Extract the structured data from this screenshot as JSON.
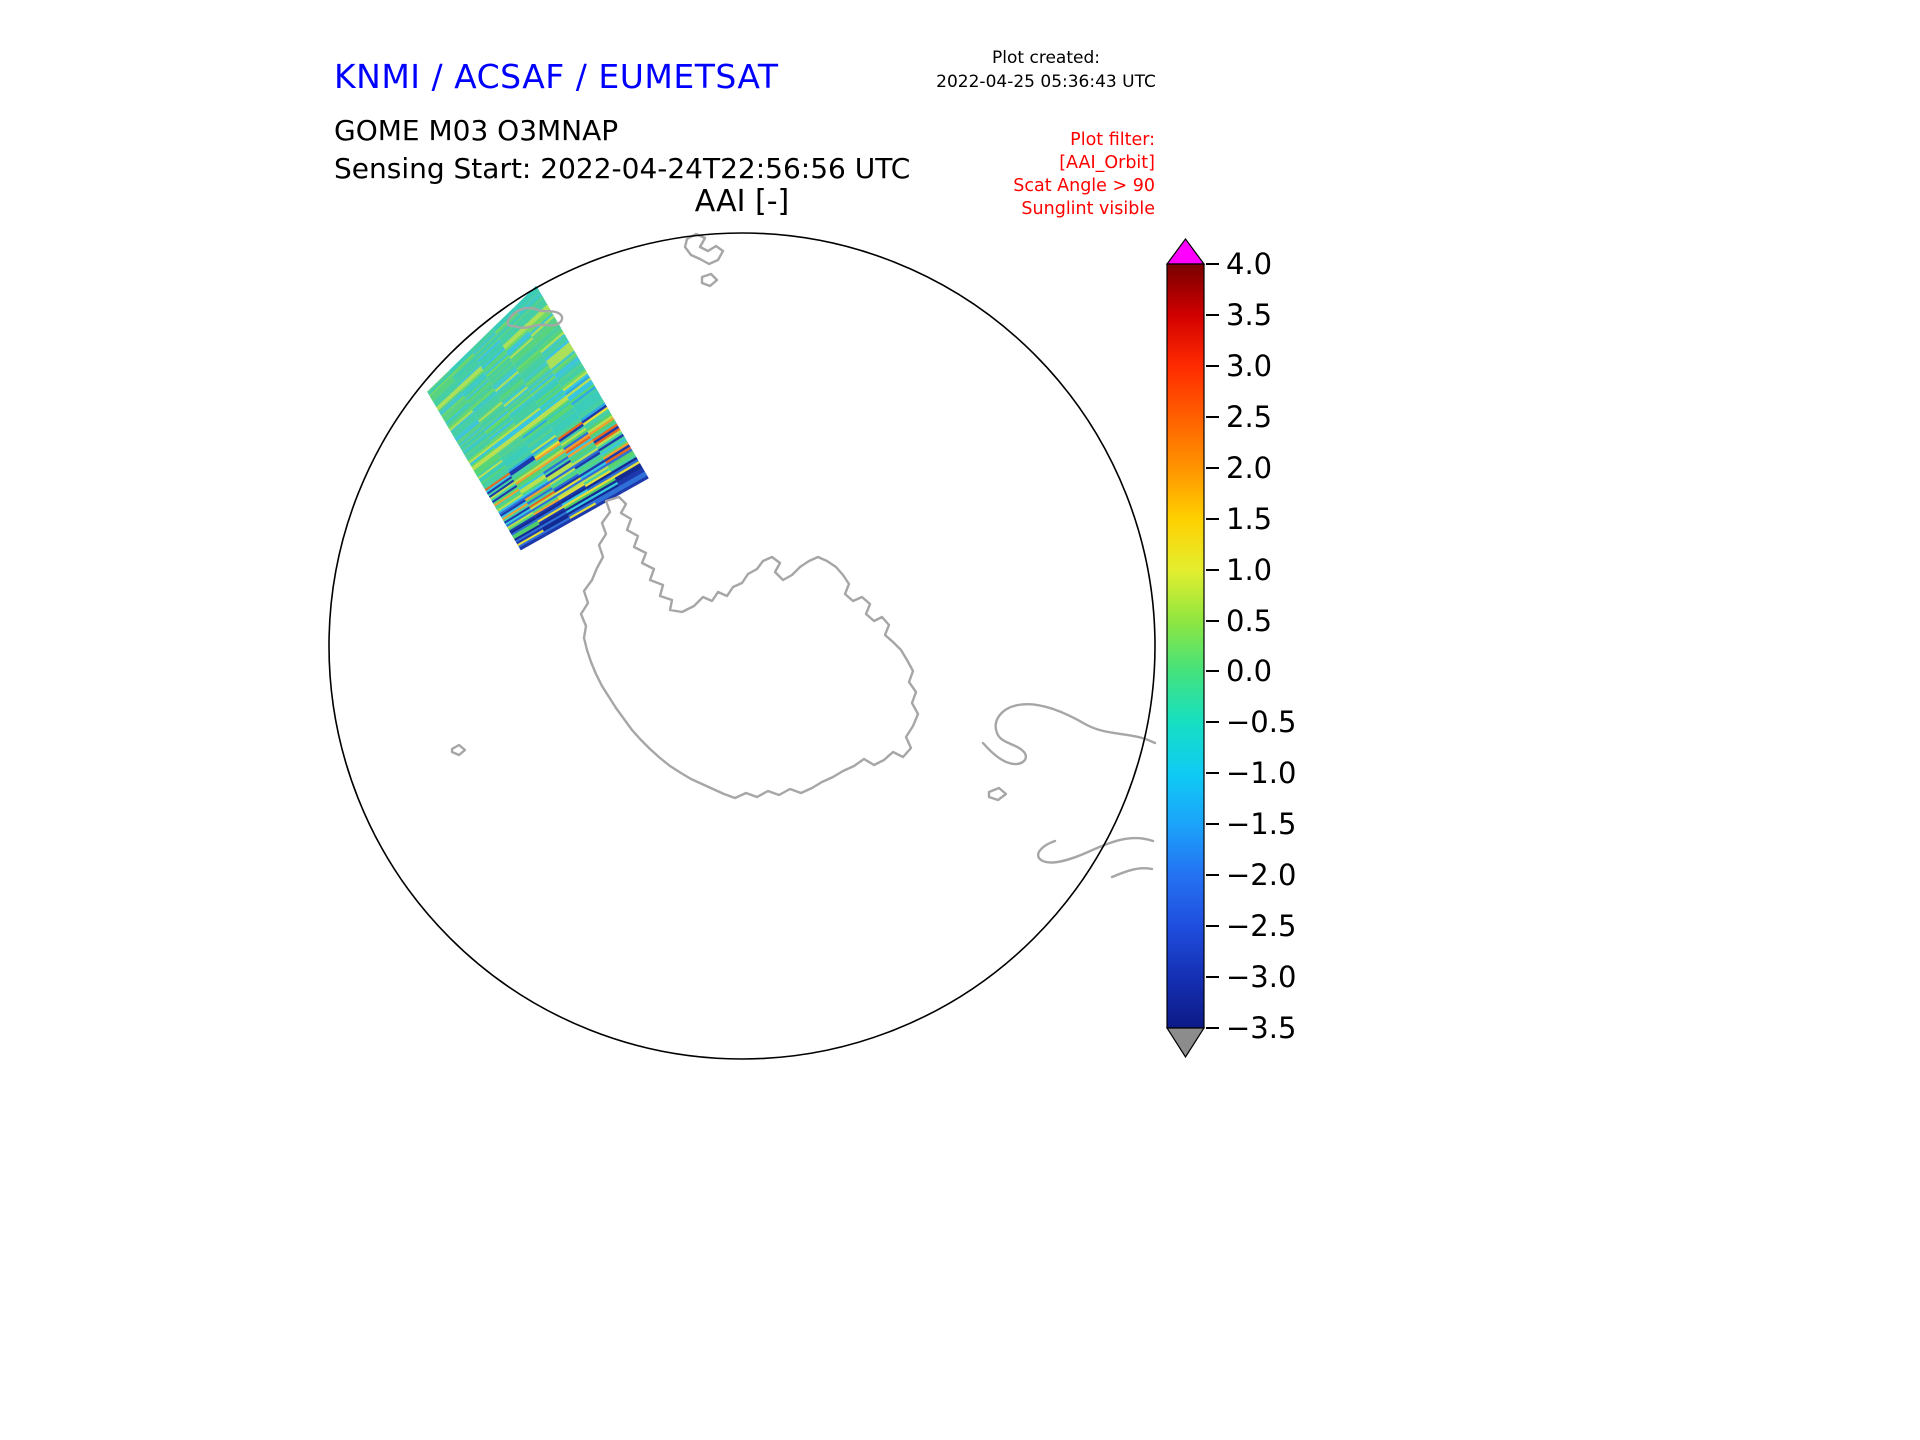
{
  "header": {
    "institution_title": "KNMI / ACSAF / EUMETSAT",
    "institution_color": "#0000ff",
    "plot_created_label": "Plot created:",
    "plot_created_value": "2022-04-25 05:36:43 UTC",
    "product_title": "GOME M03 O3MNAP",
    "sensing_start": "Sensing Start: 2022-04-24T22:56:56 UTC"
  },
  "plot_filter": {
    "color": "#ff0000",
    "lines": [
      "Plot filter:",
      "[AAI_Orbit]",
      "Scat Angle > 90",
      "Sunglint visible"
    ]
  },
  "map": {
    "title": "AAI [-]",
    "projection": "south polar stereographic view",
    "coastline_color": "#a6a6a6",
    "boundary_color": "#000000"
  },
  "chart_data": {
    "type": "heatmap",
    "title": "AAI [-]",
    "units": "-",
    "legend_position": "right",
    "colorbar": {
      "orientation": "vertical",
      "range": [
        -3.5,
        4.0
      ],
      "tick_step": 0.5,
      "tick_labels": [
        "4.0",
        "3.5",
        "3.0",
        "2.5",
        "2.0",
        "1.5",
        "1.0",
        "0.5",
        "0.0",
        "−0.5",
        "−1.0",
        "−1.5",
        "−2.0",
        "−2.5",
        "−3.0",
        "−3.5"
      ],
      "over_arrow_color": "#ff00ff",
      "under_arrow_color": "#8c8c8c",
      "gradient_stops": [
        {
          "pos": 0.0,
          "color": "#790000"
        },
        {
          "pos": 0.033,
          "color": "#a30000"
        },
        {
          "pos": 0.067,
          "color": "#d10000"
        },
        {
          "pos": 0.133,
          "color": "#ff2a00"
        },
        {
          "pos": 0.2,
          "color": "#ff5f00"
        },
        {
          "pos": 0.267,
          "color": "#ff9400"
        },
        {
          "pos": 0.333,
          "color": "#ffd000"
        },
        {
          "pos": 0.4,
          "color": "#e4ee2e"
        },
        {
          "pos": 0.467,
          "color": "#8fe640"
        },
        {
          "pos": 0.533,
          "color": "#44e27c"
        },
        {
          "pos": 0.6,
          "color": "#16dfc2"
        },
        {
          "pos": 0.667,
          "color": "#0fcbf4"
        },
        {
          "pos": 0.733,
          "color": "#1ba3fa"
        },
        {
          "pos": 0.8,
          "color": "#2472f2"
        },
        {
          "pos": 0.867,
          "color": "#1f4ede"
        },
        {
          "pos": 0.933,
          "color": "#1530b4"
        },
        {
          "pos": 1.0,
          "color": "#0c1a86"
        }
      ]
    },
    "swath": {
      "description": "Single AAI orbit swath plotted over the Southern Ocean north-west of the Antarctic Peninsula; mostly green/teal values around 0 to -1 with cross-track streaks reaching ~+2.5 (yellow/orange/red) and ~-3 (dark blue) near the swath end",
      "zones": [
        {
          "until": 0.45,
          "colors": [
            "#57d18c",
            "#46cfa4",
            "#3bccba",
            "#57d678",
            "#43c9cb",
            "#6cd96a",
            "#46cfa4",
            "#3cc3e6",
            "#57d18c",
            "#abe05a"
          ]
        },
        {
          "until": 0.62,
          "colors": [
            "#46cfa4",
            "#38c6e0",
            "#2fa8e8",
            "#57d678",
            "#b8e050",
            "#3bccba",
            "#57d18c",
            "#46cfa4"
          ]
        },
        {
          "until": 0.9,
          "colors": [
            "#e3de3a",
            "#f0a030",
            "#e8681f",
            "#57d06e",
            "#2f6fd8",
            "#38c6e0",
            "#b8e050",
            "#46cfa4",
            "#1d39ac",
            "#57d678",
            "#46cfa4"
          ]
        },
        {
          "until": 1.01,
          "colors": [
            "#1d39ac",
            "#2f6fd8",
            "#38c6e0",
            "#50cc6a",
            "#e3de3a",
            "#122a92",
            "#1d39ac"
          ]
        }
      ]
    }
  }
}
